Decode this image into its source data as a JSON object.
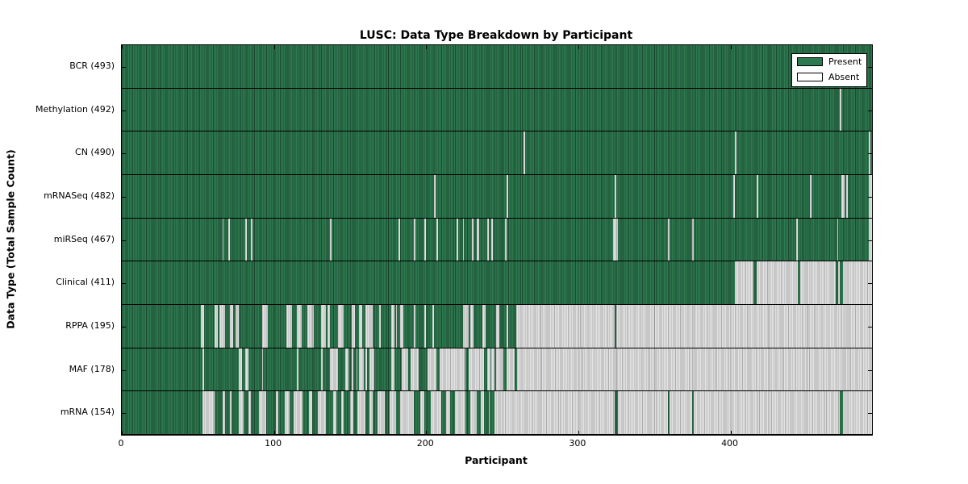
{
  "title": "LUSC: Data Type Breakdown by Participant",
  "xlabel": "Participant",
  "ylabel": "Data Type (Total Sample Count)",
  "legend": {
    "present_label": "Present",
    "absent_label": "Absent"
  },
  "colors": {
    "present": "#2e7a50",
    "present_line": "#1b4a31",
    "absent": "#e3e3e3",
    "absent_line": "#ababab",
    "axis": "#000000"
  },
  "chart_data": {
    "type": "heatmap",
    "title": "LUSC: Data Type Breakdown by Participant",
    "xlabel": "Participant",
    "ylabel": "Data Type (Total Sample Count)",
    "states": [
      "Present",
      "Absent"
    ],
    "participants": 493,
    "x_range": [
      0,
      493
    ],
    "x_ticks": [
      0,
      100,
      200,
      300,
      400
    ],
    "legend_position": "upper right",
    "rows": [
      {
        "label": "BCR (493)",
        "name": "bcr",
        "count": 493,
        "absent_runs": []
      },
      {
        "label": "Methylation (492)",
        "name": "methylation",
        "count": 492,
        "absent_runs": [
          [
            472,
            473
          ]
        ]
      },
      {
        "label": "CN (490)",
        "name": "cn",
        "count": 490,
        "absent_runs": [
          [
            264,
            265
          ],
          [
            403,
            404
          ],
          [
            491,
            492
          ]
        ]
      },
      {
        "label": "mRNASeq (482)",
        "name": "mrnaseq",
        "count": 482,
        "absent_runs": [
          [
            205,
            206
          ],
          [
            253,
            254
          ],
          [
            324,
            325
          ],
          [
            402,
            403
          ],
          [
            417,
            418
          ],
          [
            452,
            453
          ],
          [
            473,
            475
          ],
          [
            476,
            477
          ],
          [
            491,
            493
          ]
        ]
      },
      {
        "label": "miRSeq (467)",
        "name": "mirseq",
        "count": 467,
        "absent_runs": [
          [
            66,
            67
          ],
          [
            70,
            71
          ],
          [
            81,
            82
          ],
          [
            85,
            86
          ],
          [
            137,
            138
          ],
          [
            182,
            183
          ],
          [
            192,
            193
          ],
          [
            199,
            200
          ],
          [
            207,
            208
          ],
          [
            220,
            221
          ],
          [
            224,
            225
          ],
          [
            230,
            231
          ],
          [
            233,
            235
          ],
          [
            240,
            241
          ],
          [
            243,
            244
          ],
          [
            252,
            253
          ],
          [
            323,
            326
          ],
          [
            359,
            360
          ],
          [
            375,
            376
          ],
          [
            443,
            444
          ],
          [
            470,
            471
          ],
          [
            491,
            493
          ]
        ]
      },
      {
        "label": "Clinical (411)",
        "name": "clinical",
        "count": 411,
        "absent_runs": [
          [
            403,
            415
          ],
          [
            417,
            444
          ],
          [
            446,
            469
          ],
          [
            471,
            472
          ],
          [
            474,
            493
          ]
        ]
      },
      {
        "label": "RPPA (195)",
        "name": "rppa",
        "count": 195,
        "absent_runs": [
          [
            52,
            54
          ],
          [
            61,
            63
          ],
          [
            64,
            68
          ],
          [
            71,
            73
          ],
          [
            75,
            77
          ],
          [
            92,
            96
          ],
          [
            108,
            112
          ],
          [
            115,
            118
          ],
          [
            122,
            126
          ],
          [
            131,
            134
          ],
          [
            135,
            137
          ],
          [
            142,
            146
          ],
          [
            151,
            153
          ],
          [
            156,
            158
          ],
          [
            160,
            165
          ],
          [
            169,
            170
          ],
          [
            177,
            179
          ],
          [
            180,
            181
          ],
          [
            183,
            185
          ],
          [
            192,
            193
          ],
          [
            199,
            200
          ],
          [
            204,
            205
          ],
          [
            224,
            228
          ],
          [
            229,
            231
          ],
          [
            237,
            239
          ],
          [
            246,
            248
          ],
          [
            253,
            254
          ],
          [
            259,
            324
          ],
          [
            325,
            493
          ]
        ]
      },
      {
        "label": "MAF (178)",
        "name": "maf",
        "count": 178,
        "absent_runs": [
          [
            53,
            54
          ],
          [
            77,
            79
          ],
          [
            81,
            83
          ],
          [
            92,
            93
          ],
          [
            115,
            116
          ],
          [
            131,
            132
          ],
          [
            137,
            142
          ],
          [
            147,
            149
          ],
          [
            151,
            152
          ],
          [
            154,
            155
          ],
          [
            156,
            159
          ],
          [
            160,
            161
          ],
          [
            163,
            166
          ],
          [
            177,
            179
          ],
          [
            184,
            188
          ],
          [
            190,
            195
          ],
          [
            201,
            207
          ],
          [
            209,
            226
          ],
          [
            228,
            238
          ],
          [
            240,
            242
          ],
          [
            243,
            245
          ],
          [
            246,
            251
          ],
          [
            253,
            258
          ],
          [
            260,
            493
          ]
        ]
      },
      {
        "label": "mRNA (154)",
        "name": "mrna",
        "count": 154,
        "absent_runs": [
          [
            53,
            61
          ],
          [
            66,
            68
          ],
          [
            71,
            72
          ],
          [
            77,
            80
          ],
          [
            83,
            85
          ],
          [
            90,
            95
          ],
          [
            101,
            103
          ],
          [
            107,
            110
          ],
          [
            113,
            119
          ],
          [
            123,
            125
          ],
          [
            129,
            134
          ],
          [
            139,
            141
          ],
          [
            144,
            146
          ],
          [
            150,
            152
          ],
          [
            155,
            160
          ],
          [
            163,
            165
          ],
          [
            168,
            173
          ],
          [
            176,
            180
          ],
          [
            183,
            192
          ],
          [
            196,
            199
          ],
          [
            203,
            210
          ],
          [
            213,
            216
          ],
          [
            219,
            226
          ],
          [
            229,
            233
          ],
          [
            236,
            238
          ],
          [
            241,
            242
          ],
          [
            245,
            324
          ],
          [
            326,
            359
          ],
          [
            360,
            375
          ],
          [
            376,
            472
          ],
          [
            474,
            493
          ]
        ]
      }
    ]
  }
}
